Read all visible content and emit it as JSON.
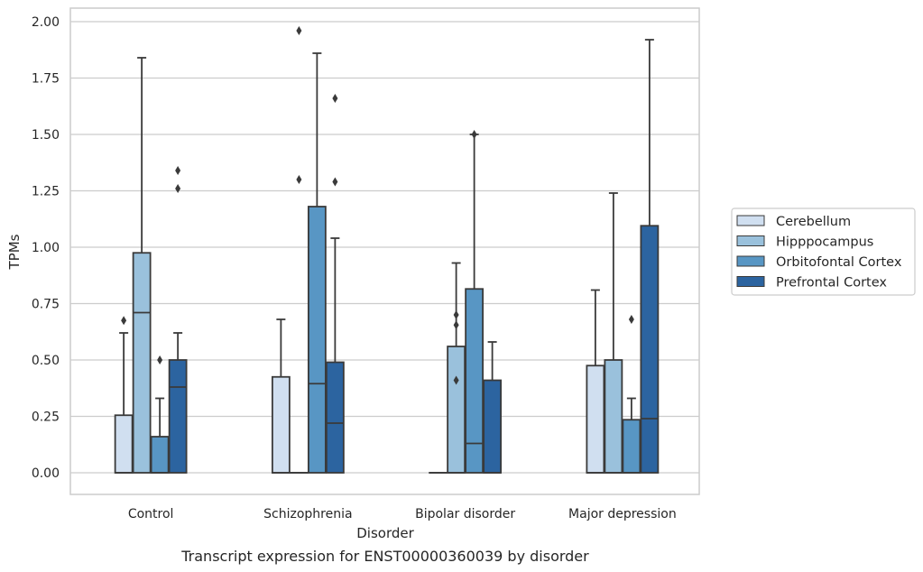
{
  "chart_data": {
    "type": "box",
    "caption": "Transcript expression for ENST00000360039 by disorder",
    "xlabel": "Disorder",
    "ylabel": "TPMs",
    "ylim": [
      -0.1,
      2.06
    ],
    "yticks": [
      0.0,
      0.25,
      0.5,
      0.75,
      1.0,
      1.25,
      1.5,
      1.75,
      2.0
    ],
    "ytick_labels": [
      "0.00",
      "0.25",
      "0.50",
      "0.75",
      "1.00",
      "1.25",
      "1.50",
      "1.75",
      "2.00"
    ],
    "grid": "horizontal",
    "legend_position": "right",
    "categories": [
      "Control",
      "Schizophrenia",
      "Bipolar disorder",
      "Major depression"
    ],
    "series": [
      {
        "name": "Cerebellum",
        "color": "#d0dff0",
        "boxes": [
          {
            "q1": 0.0,
            "median": 0.0,
            "q3": 0.255,
            "whisker_low": 0.0,
            "whisker_high": 0.62,
            "outliers": [
              0.675
            ]
          },
          {
            "q1": 0.0,
            "median": 0.0,
            "q3": 0.425,
            "whisker_low": 0.0,
            "whisker_high": 0.68,
            "outliers": []
          },
          {
            "q1": 0.0,
            "median": 0.0,
            "q3": 0.0,
            "whisker_low": 0.0,
            "whisker_high": 0.0,
            "outliers": []
          },
          {
            "q1": 0.0,
            "median": 0.0,
            "q3": 0.475,
            "whisker_low": 0.0,
            "whisker_high": 0.81,
            "outliers": []
          }
        ]
      },
      {
        "name": "Hipppocampus",
        "color": "#9ac1dc",
        "boxes": [
          {
            "q1": 0.0,
            "median": 0.71,
            "q3": 0.975,
            "whisker_low": 0.0,
            "whisker_high": 1.84,
            "outliers": []
          },
          {
            "q1": 0.0,
            "median": 0.0,
            "q3": 0.0,
            "whisker_low": 0.0,
            "whisker_high": 0.0,
            "outliers": [
              1.96,
              1.3
            ]
          },
          {
            "q1": 0.0,
            "median": 0.0,
            "q3": 0.56,
            "whisker_low": 0.0,
            "whisker_high": 0.93,
            "outliers": [
              0.7,
              0.655,
              0.41
            ]
          },
          {
            "q1": 0.0,
            "median": 0.0,
            "q3": 0.5,
            "whisker_low": 0.0,
            "whisker_high": 1.24,
            "outliers": []
          }
        ]
      },
      {
        "name": "Orbitofontal Cortex",
        "color": "#5896c4",
        "boxes": [
          {
            "q1": 0.0,
            "median": 0.0,
            "q3": 0.16,
            "whisker_low": 0.0,
            "whisker_high": 0.33,
            "outliers": [
              0.5
            ]
          },
          {
            "q1": 0.0,
            "median": 0.395,
            "q3": 1.18,
            "whisker_low": 0.0,
            "whisker_high": 1.86,
            "outliers": []
          },
          {
            "q1": 0.0,
            "median": 0.13,
            "q3": 0.815,
            "whisker_low": 0.0,
            "whisker_high": 1.5,
            "outliers": [
              1.5
            ]
          },
          {
            "q1": 0.0,
            "median": 0.0,
            "q3": 0.235,
            "whisker_low": 0.0,
            "whisker_high": 0.33,
            "outliers": [
              0.68
            ]
          }
        ]
      },
      {
        "name": "Prefrontal Cortex",
        "color": "#2c64a0",
        "boxes": [
          {
            "q1": 0.0,
            "median": 0.38,
            "q3": 0.5,
            "whisker_low": 0.0,
            "whisker_high": 0.62,
            "outliers": [
              1.34,
              1.26
            ]
          },
          {
            "q1": 0.0,
            "median": 0.22,
            "q3": 0.49,
            "whisker_low": 0.0,
            "whisker_high": 1.04,
            "outliers": [
              1.66,
              1.29
            ]
          },
          {
            "q1": 0.0,
            "median": 0.0,
            "q3": 0.41,
            "whisker_low": 0.0,
            "whisker_high": 0.58,
            "outliers": []
          },
          {
            "q1": 0.0,
            "median": 0.24,
            "q3": 1.095,
            "whisker_low": 0.0,
            "whisker_high": 1.92,
            "outliers": []
          }
        ]
      }
    ]
  }
}
